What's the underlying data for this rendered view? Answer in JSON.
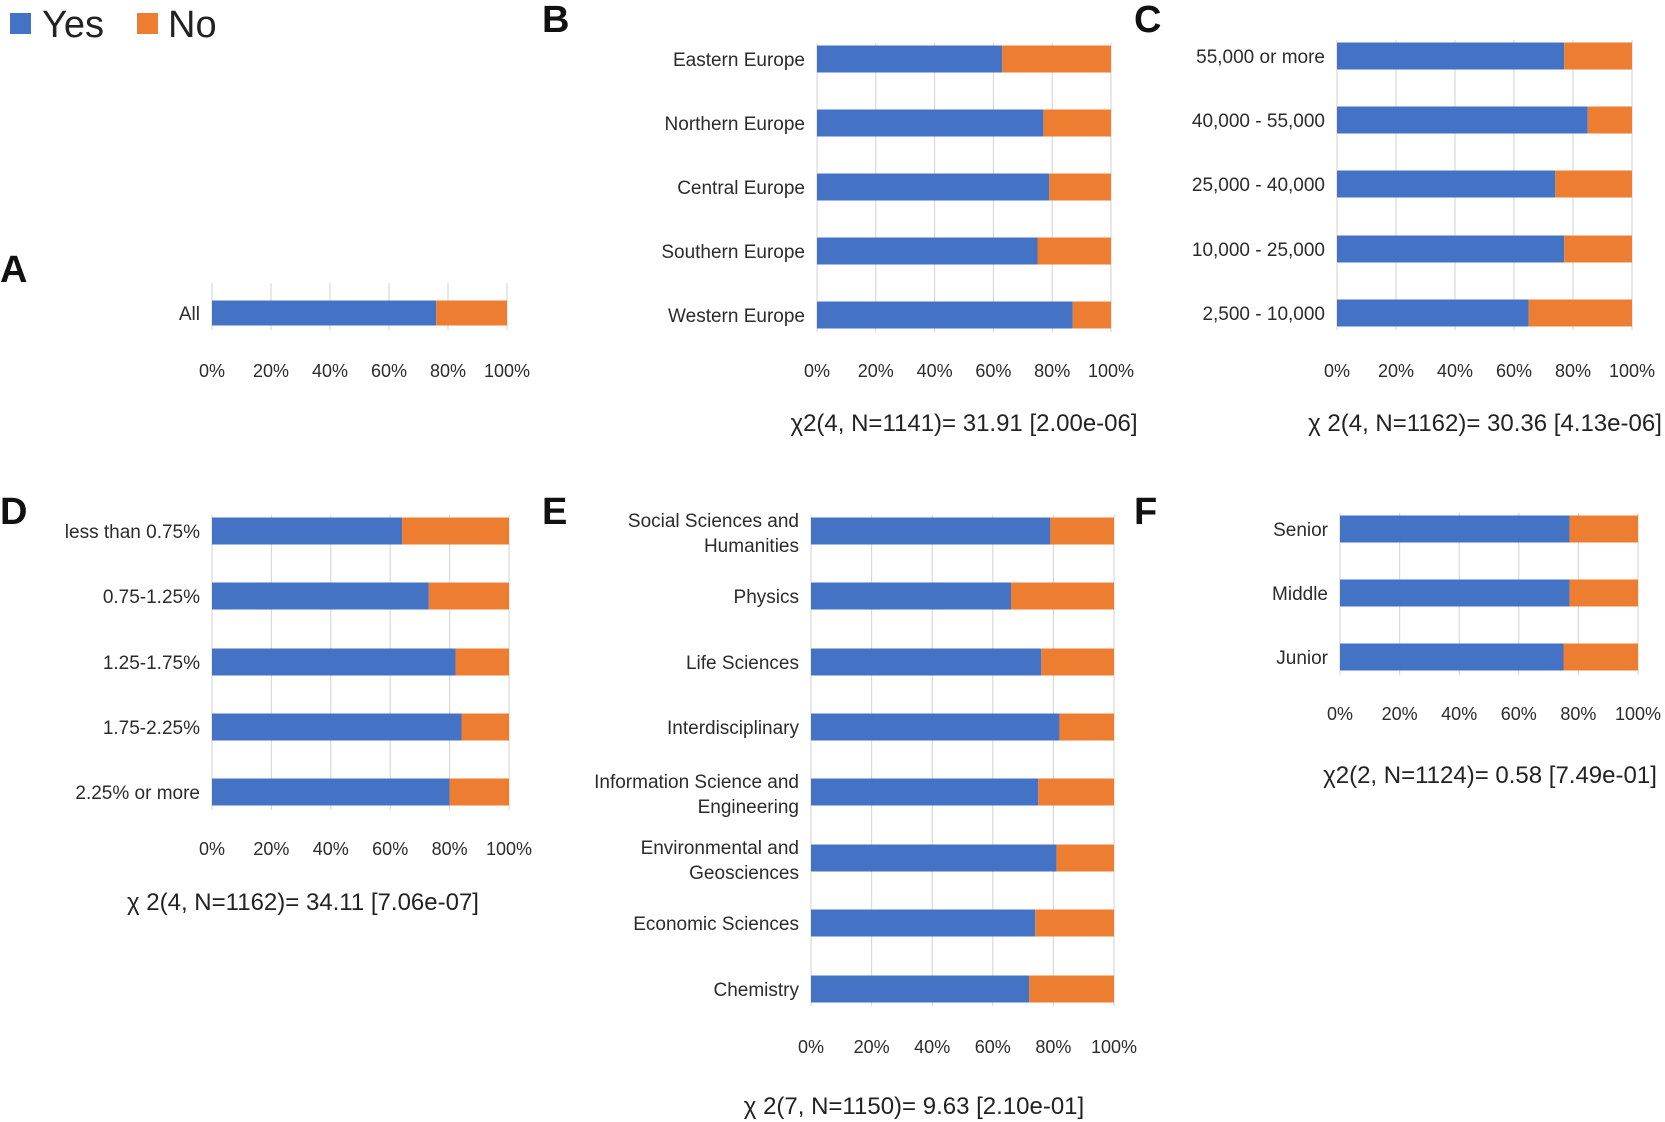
{
  "legend": {
    "items": [
      {
        "label": "Yes",
        "color": "#4472C4"
      },
      {
        "label": "No",
        "color": "#ED7D31"
      }
    ]
  },
  "chart_data": [
    {
      "panel": "A",
      "type": "bar",
      "stacked": true,
      "orientation": "horizontal",
      "categories": [
        "All"
      ],
      "series": [
        {
          "name": "Yes",
          "values": [
            76
          ]
        },
        {
          "name": "No",
          "values": [
            24
          ]
        }
      ],
      "xlim": [
        0,
        100
      ],
      "xticks": [
        "0%",
        "20%",
        "40%",
        "60%",
        "80%",
        "100%"
      ],
      "stat": ""
    },
    {
      "panel": "B",
      "type": "bar",
      "stacked": true,
      "orientation": "horizontal",
      "categories": [
        "Eastern Europe",
        "Northern Europe",
        "Central Europe",
        "Southern Europe",
        "Western Europe"
      ],
      "series": [
        {
          "name": "Yes",
          "values": [
            63,
            77,
            79,
            75,
            87
          ]
        },
        {
          "name": "No",
          "values": [
            37,
            23,
            21,
            25,
            13
          ]
        }
      ],
      "xlim": [
        0,
        100
      ],
      "xticks": [
        "0%",
        "20%",
        "40%",
        "60%",
        "80%",
        "100%"
      ],
      "stat": "χ2(4, N=1141)=  31.91 [2.00e-06]"
    },
    {
      "panel": "C",
      "type": "bar",
      "stacked": true,
      "orientation": "horizontal",
      "categories": [
        "55,000 or more",
        "40,000 - 55,000",
        "25,000 - 40,000",
        "10,000 - 25,000",
        "2,500 - 10,000"
      ],
      "series": [
        {
          "name": "Yes",
          "values": [
            77,
            85,
            74,
            77,
            65
          ]
        },
        {
          "name": "No",
          "values": [
            23,
            15,
            26,
            23,
            35
          ]
        }
      ],
      "xlim": [
        0,
        100
      ],
      "xticks": [
        "0%",
        "20%",
        "40%",
        "60%",
        "80%",
        "100%"
      ],
      "stat": "χ 2(4, N=1162)=  30.36 [4.13e-06]"
    },
    {
      "panel": "D",
      "type": "bar",
      "stacked": true,
      "orientation": "horizontal",
      "categories": [
        "less than 0.75%",
        "0.75-1.25%",
        "1.25-1.75%",
        "1.75-2.25%",
        "2.25% or more"
      ],
      "series": [
        {
          "name": "Yes",
          "values": [
            64,
            73,
            82,
            84,
            80
          ]
        },
        {
          "name": "No",
          "values": [
            36,
            27,
            18,
            16,
            20
          ]
        }
      ],
      "xlim": [
        0,
        100
      ],
      "xticks": [
        "0%",
        "20%",
        "40%",
        "60%",
        "80%",
        "100%"
      ],
      "stat": "χ 2(4, N=1162)=  34.11 [7.06e-07]"
    },
    {
      "panel": "E",
      "type": "bar",
      "stacked": true,
      "orientation": "horizontal",
      "categories": [
        "Social Sciences and Humanities",
        "Physics",
        "Life Sciences",
        "Interdisciplinary",
        "Information Science and Engineering",
        "Environmental and Geosciences",
        "Economic Sciences",
        "Chemistry"
      ],
      "category_lines": [
        [
          "Social Sciences and",
          "Humanities"
        ],
        [
          "Physics"
        ],
        [
          "Life Sciences"
        ],
        [
          "Interdisciplinary"
        ],
        [
          "Information Science and",
          "Engineering"
        ],
        [
          "Environmental and",
          "Geosciences"
        ],
        [
          "Economic Sciences"
        ],
        [
          "Chemistry"
        ]
      ],
      "series": [
        {
          "name": "Yes",
          "values": [
            79,
            66,
            76,
            82,
            75,
            81,
            74,
            72
          ]
        },
        {
          "name": "No",
          "values": [
            21,
            34,
            24,
            18,
            25,
            19,
            26,
            28
          ]
        }
      ],
      "xlim": [
        0,
        100
      ],
      "xticks": [
        "0%",
        "20%",
        "40%",
        "60%",
        "80%",
        "100%"
      ],
      "stat": "χ 2(7, N=1150)=  9.63 [2.10e-01]"
    },
    {
      "panel": "F",
      "type": "bar",
      "stacked": true,
      "orientation": "horizontal",
      "categories": [
        "Senior",
        "Middle",
        "Junior"
      ],
      "series": [
        {
          "name": "Yes",
          "values": [
            77,
            77,
            75
          ]
        },
        {
          "name": "No",
          "values": [
            23,
            23,
            25
          ]
        }
      ],
      "xlim": [
        0,
        100
      ],
      "xticks": [
        "0%",
        "20%",
        "40%",
        "60%",
        "80%",
        "100%"
      ],
      "stat": "χ2(2, N=1124)= 0.58 [7.49e-01]"
    }
  ]
}
